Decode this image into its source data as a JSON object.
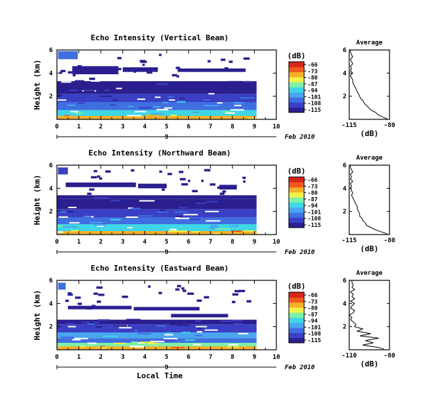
{
  "colorbar": {
    "unit_label": "(dB)",
    "tick_labels": [
      "-66",
      "-73",
      "-80",
      "-87",
      "-94",
      "-101",
      "-108",
      "-115"
    ],
    "colors": [
      "#2b1f8f",
      "#3a3fc4",
      "#3f6fe0",
      "#4aa6ee",
      "#3fd6e6",
      "#7ef0a8",
      "#f2f24a",
      "#f5b02a",
      "#f05a20",
      "#d8261a"
    ]
  },
  "panels": [
    {
      "title": "Echo Intensity (Vertical Beam)",
      "ylabel": "Height (km)",
      "x_ticks": [
        "0",
        "1",
        "2",
        "3",
        "4",
        "5",
        "6",
        "7",
        "8",
        "9",
        "10"
      ],
      "y_ticks": [
        "6",
        "4",
        "2"
      ],
      "date_day": "9",
      "date_label": "Feb 2010",
      "avg_title": "Average",
      "avg_ticks_y": [
        "6",
        "4",
        "2"
      ],
      "avg_ticks_x": [
        "-115",
        "-80"
      ],
      "avg_xlabel": "(dB)"
    },
    {
      "title": "Echo Intensity (Northward Beam)",
      "ylabel": "Height (km)",
      "x_ticks": [
        "0",
        "1",
        "2",
        "3",
        "4",
        "5",
        "6",
        "7",
        "8",
        "9",
        "10"
      ],
      "y_ticks": [
        "6",
        "4",
        "2"
      ],
      "date_day": "9",
      "date_label": "Feb 2010",
      "avg_title": "Average",
      "avg_ticks_y": [
        "6",
        "4",
        "2"
      ],
      "avg_ticks_x": [
        "-115",
        "-80"
      ],
      "avg_xlabel": "(dB)"
    },
    {
      "title": "Echo Intensity (Eastward Beam)",
      "ylabel": "Height (km)",
      "x_ticks": [
        "0",
        "1",
        "2",
        "3",
        "4",
        "5",
        "6",
        "7",
        "8",
        "9",
        "10"
      ],
      "y_ticks": [
        "6",
        "4",
        "2"
      ],
      "date_day": "9",
      "date_label": "Feb 2010",
      "xlabel": "Local Time",
      "avg_title": "Average",
      "avg_ticks_y": [
        "6",
        "4",
        "2"
      ],
      "avg_ticks_x": [
        "-110",
        "-80"
      ],
      "avg_xlabel": "(dB)"
    }
  ],
  "chart_data": [
    {
      "type": "heatmap",
      "title": "Echo Intensity (Vertical Beam)",
      "xlabel": "",
      "ylabel": "Height (km)",
      "xlim": [
        0,
        10
      ],
      "ylim": [
        0,
        6
      ],
      "data_end_x": 9.1,
      "colorbar_range_db": [
        -115,
        -66
      ],
      "layers": [
        {
          "y": [
            0.0,
            0.3
          ],
          "db": -80
        },
        {
          "y": [
            0.3,
            0.8
          ],
          "db": -94
        },
        {
          "y": [
            0.8,
            1.5
          ],
          "db": -101
        },
        {
          "y": [
            1.5,
            2.2
          ],
          "db": -108
        },
        {
          "y": [
            2.2,
            3.0
          ],
          "db": -112
        },
        {
          "y": [
            3.0,
            3.3
          ],
          "db": -115
        }
      ],
      "upper_patches": [
        {
          "x": [
            0.05,
            0.95
          ],
          "y": [
            5.2,
            5.9
          ],
          "db": -101
        },
        {
          "x": [
            0.7,
            2.8
          ],
          "y": [
            3.9,
            4.6
          ],
          "db": -113
        },
        {
          "x": [
            3.0,
            4.6
          ],
          "y": [
            4.1,
            4.5
          ],
          "db": -114
        },
        {
          "x": [
            5.5,
            8.6
          ],
          "y": [
            4.1,
            4.4
          ],
          "db": -114
        }
      ],
      "average_profile": {
        "xlim": [
          -115,
          -80
        ],
        "ylim": [
          0,
          6
        ],
        "height_km": [
          0.05,
          0.2,
          0.4,
          0.6,
          0.8,
          1.0,
          1.2,
          1.4,
          1.6,
          1.8,
          2.0,
          2.2,
          2.4,
          2.6,
          2.8,
          3.0,
          3.2,
          3.4,
          3.6,
          3.8,
          4.0,
          4.2,
          4.4,
          4.6,
          4.8,
          5.0,
          5.2,
          5.4,
          5.6,
          5.8,
          6.0
        ],
        "db": [
          -82,
          -86,
          -90,
          -92,
          -96,
          -98,
          -100,
          -102,
          -103,
          -105,
          -106,
          -107,
          -108,
          -109,
          -110,
          -111,
          -112,
          -112,
          -113,
          -114,
          -112,
          -114,
          -113,
          -114,
          -112,
          -113,
          -114,
          -112,
          -113,
          -114,
          -114
        ]
      }
    },
    {
      "type": "heatmap",
      "title": "Echo Intensity (Northward Beam)",
      "xlabel": "",
      "ylabel": "Height (km)",
      "xlim": [
        0,
        10
      ],
      "ylim": [
        0,
        6
      ],
      "data_end_x": 9.1,
      "colorbar_range_db": [
        -115,
        -66
      ],
      "layers": [
        {
          "y": [
            0.0,
            0.3
          ],
          "db": -80
        },
        {
          "y": [
            0.3,
            0.9
          ],
          "db": -94
        },
        {
          "y": [
            0.9,
            1.5
          ],
          "db": -101
        },
        {
          "y": [
            1.5,
            2.2
          ],
          "db": -108
        },
        {
          "y": [
            2.2,
            3.1
          ],
          "db": -112
        },
        {
          "y": [
            3.1,
            3.4
          ],
          "db": -115
        }
      ],
      "upper_patches": [
        {
          "x": [
            0.05,
            0.5
          ],
          "y": [
            5.2,
            5.8
          ],
          "db": -108
        },
        {
          "x": [
            0.4,
            3.6
          ],
          "y": [
            4.1,
            4.5
          ],
          "db": -113
        },
        {
          "x": [
            3.7,
            5.0
          ],
          "y": [
            4.0,
            4.4
          ],
          "db": -114
        },
        {
          "x": [
            7.4,
            8.2
          ],
          "y": [
            3.9,
            4.3
          ],
          "db": -114
        }
      ],
      "average_profile": {
        "xlim": [
          -115,
          -80
        ],
        "ylim": [
          0,
          6
        ],
        "height_km": [
          0.05,
          0.2,
          0.4,
          0.6,
          0.8,
          1.0,
          1.2,
          1.4,
          1.6,
          1.8,
          2.0,
          2.2,
          2.4,
          2.6,
          2.8,
          3.0,
          3.2,
          3.4,
          3.6,
          3.8,
          4.0,
          4.2,
          4.4,
          4.6,
          4.8,
          5.0,
          5.2,
          5.4,
          5.6,
          5.8,
          6.0
        ],
        "db": [
          -82,
          -86,
          -92,
          -96,
          -100,
          -101,
          -103,
          -104,
          -106,
          -106,
          -107,
          -108,
          -108,
          -109,
          -110,
          -111,
          -112,
          -113,
          -112,
          -113,
          -114,
          -113,
          -114,
          -112,
          -114,
          -113,
          -114,
          -112,
          -113,
          -114,
          -114
        ]
      }
    },
    {
      "type": "heatmap",
      "title": "Echo Intensity (Eastward Beam)",
      "xlabel": "Local Time",
      "ylabel": "Height (km)",
      "xlim": [
        0,
        10
      ],
      "ylim": [
        0,
        6
      ],
      "data_end_x": 9.1,
      "colorbar_range_db": [
        -115,
        -66
      ],
      "layers": [
        {
          "y": [
            0.0,
            0.3
          ],
          "db": -80
        },
        {
          "y": [
            0.3,
            0.6
          ],
          "db": -87
        },
        {
          "y": [
            0.6,
            1.0
          ],
          "db": -101
        },
        {
          "y": [
            1.0,
            1.5
          ],
          "db": -97
        },
        {
          "y": [
            1.5,
            2.2
          ],
          "db": -108
        },
        {
          "y": [
            2.2,
            2.6
          ],
          "db": -112
        }
      ],
      "upper_patches": [
        {
          "x": [
            0.05,
            0.4
          ],
          "y": [
            5.2,
            5.8
          ],
          "db": -101
        },
        {
          "x": [
            0.5,
            3.4
          ],
          "y": [
            3.5,
            3.8
          ],
          "db": -113
        },
        {
          "x": [
            3.5,
            6.5
          ],
          "y": [
            3.4,
            3.7
          ],
          "db": -114
        },
        {
          "x": [
            5.2,
            7.8
          ],
          "y": [
            2.8,
            3.1
          ],
          "db": -114
        }
      ],
      "average_profile": {
        "xlim": [
          -110,
          -80
        ],
        "ylim": [
          0,
          6
        ],
        "height_km": [
          0.05,
          0.2,
          0.4,
          0.6,
          0.8,
          1.0,
          1.2,
          1.4,
          1.6,
          1.8,
          2.0,
          2.2,
          2.4,
          2.6,
          2.8,
          3.0,
          3.2,
          3.4,
          3.6,
          3.8,
          4.0,
          4.2,
          4.4,
          4.6,
          4.8,
          5.0,
          5.2,
          5.4,
          5.6,
          5.8,
          6.0
        ],
        "db": [
          -84,
          -88,
          -100,
          -92,
          -98,
          -88,
          -102,
          -94,
          -104,
          -100,
          -106,
          -105,
          -107,
          -109,
          -108,
          -110,
          -107,
          -106,
          -109,
          -108,
          -106,
          -109,
          -106,
          -108,
          -107,
          -109,
          -106,
          -108,
          -107,
          -108,
          -108
        ]
      }
    }
  ]
}
